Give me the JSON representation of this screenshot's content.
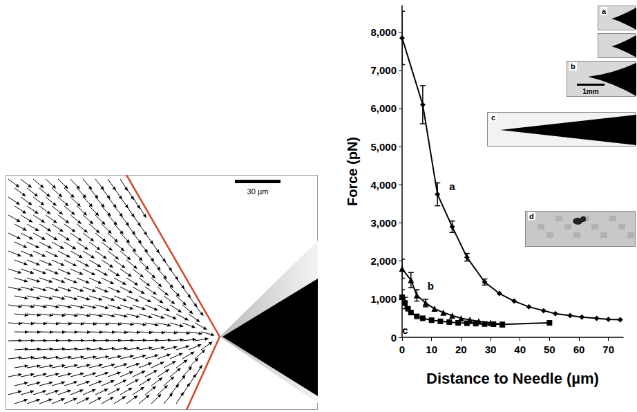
{
  "chart_data": {
    "type": "line",
    "x_label": "Distance to Needle (µm)",
    "y_label": "Force (pN)",
    "xlim": [
      0,
      75
    ],
    "xticks": [
      0,
      10,
      20,
      30,
      40,
      50,
      60,
      70
    ],
    "ylim": [
      0,
      8700
    ],
    "yticks": [
      0,
      1000,
      2000,
      3000,
      4000,
      5000,
      6000,
      7000,
      8000
    ],
    "grid": false,
    "series": [
      {
        "name": "a",
        "color": "#000000",
        "marker": "diamond",
        "x": [
          0,
          7,
          12,
          17,
          22,
          28,
          33,
          38,
          43,
          48,
          52,
          57,
          61,
          66,
          70,
          74
        ],
        "values": [
          7850,
          6100,
          3750,
          2900,
          2100,
          1450,
          1150,
          950,
          800,
          700,
          620,
          570,
          530,
          500,
          470,
          460
        ],
        "error": [
          700,
          500,
          300,
          150,
          100,
          80,
          null,
          null,
          null,
          null,
          null,
          null,
          null,
          null,
          null,
          null
        ]
      },
      {
        "name": "b",
        "color": "#000000",
        "marker": "triangle",
        "x": [
          0,
          3,
          5,
          8,
          11,
          14,
          17,
          20,
          23,
          26,
          30,
          34
        ],
        "values": [
          1800,
          1500,
          1100,
          900,
          750,
          650,
          570,
          500,
          460,
          420,
          380,
          340
        ],
        "error": [
          250,
          200,
          150,
          100,
          null,
          null,
          null,
          null,
          null,
          null,
          null,
          null
        ]
      },
      {
        "name": "c",
        "color": "#000000",
        "marker": "rect",
        "x": [
          0,
          1,
          2,
          3,
          5,
          7,
          10,
          13,
          16,
          19,
          22,
          25,
          28,
          31,
          34,
          50
        ],
        "values": [
          1050,
          900,
          750,
          650,
          550,
          500,
          450,
          420,
          400,
          380,
          370,
          360,
          350,
          345,
          340,
          380
        ],
        "error": [
          200,
          150,
          null,
          null,
          null,
          null,
          null,
          null,
          null,
          null,
          null,
          null,
          null,
          null,
          null,
          null
        ]
      }
    ]
  },
  "left_panel": {
    "scale_bar": "30 µm"
  },
  "inset_labels": [
    "a",
    "b",
    "c",
    "d"
  ],
  "inset_scale_bar": "1mm"
}
